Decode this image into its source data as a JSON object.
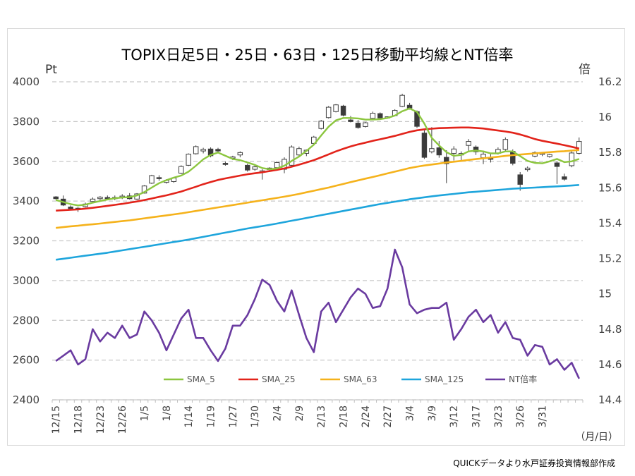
{
  "chart_data": {
    "type": "candlestick-line",
    "title": "TOPIX日足5日・25日・63日・125日移動平均線とNT倍率",
    "y_left_unit": "Pt",
    "y_right_unit": "倍",
    "x_unit": "（月/日）",
    "footnote": "QUICKデータより水戸証券投資情報部作成",
    "ylim_left": [
      2400,
      4000
    ],
    "ylim_right": [
      14.4,
      16.2
    ],
    "y_left_ticks": [
      "4000",
      "3800",
      "3600",
      "3400",
      "3200",
      "3000",
      "2800",
      "2600",
      "2400"
    ],
    "y_right_ticks": [
      "16.2",
      "16",
      "15.8",
      "15.6",
      "15.4",
      "15.2",
      "15",
      "14.8",
      "14.6",
      "14.4"
    ],
    "x_tick_labels": [
      "12/15",
      "12/18",
      "12/23",
      "12/26",
      "1/5",
      "1/8",
      "1/14",
      "1/19",
      "1/27",
      "1/30",
      "2/4",
      "2/9",
      "2/13",
      "2/18",
      "2/24",
      "2/27",
      "3/4",
      "3/9",
      "3/12",
      "3/17",
      "3/23",
      "3/26",
      "3/31"
    ],
    "x_tick_index": [
      0,
      3,
      6,
      9,
      12,
      15,
      18,
      21,
      24,
      27,
      30,
      33,
      36,
      39,
      42,
      45,
      48,
      51,
      54,
      57,
      60,
      63,
      66
    ],
    "grid": "horizontal-dashed",
    "legend_position": "bottom-right",
    "legend": [
      {
        "name": "SMA_5",
        "color": "#8cc63f"
      },
      {
        "name": "SMA_25",
        "color": "#e2231a"
      },
      {
        "name": "SMA_63",
        "color": "#f5b21b"
      },
      {
        "name": "SMA_125",
        "color": "#1ea5dc"
      },
      {
        "name": "NT倍率",
        "color": "#6a3ba0"
      }
    ],
    "candles": [
      [
        3421,
        3425,
        3408,
        3412
      ],
      [
        3410,
        3428,
        3375,
        3380
      ],
      [
        3370,
        3378,
        3355,
        3362
      ],
      [
        3364,
        3370,
        3345,
        3358
      ],
      [
        3372,
        3392,
        3368,
        3385
      ],
      [
        3398,
        3418,
        3394,
        3410
      ],
      [
        3412,
        3425,
        3405,
        3420
      ],
      [
        3418,
        3428,
        3408,
        3412
      ],
      [
        3412,
        3428,
        3404,
        3418
      ],
      [
        3418,
        3435,
        3410,
        3425
      ],
      [
        3426,
        3440,
        3408,
        3412
      ],
      [
        3410,
        3440,
        3406,
        3436
      ],
      [
        3440,
        3480,
        3438,
        3476
      ],
      [
        3490,
        3532,
        3486,
        3528
      ],
      [
        3518,
        3530,
        3502,
        3514
      ],
      [
        3494,
        3510,
        3488,
        3504
      ],
      [
        3498,
        3520,
        3492,
        3516
      ],
      [
        3540,
        3580,
        3536,
        3574
      ],
      [
        3580,
        3640,
        3576,
        3636
      ],
      [
        3638,
        3680,
        3634,
        3674
      ],
      [
        3652,
        3668,
        3640,
        3660
      ],
      [
        3662,
        3670,
        3620,
        3628
      ],
      [
        3660,
        3668,
        3640,
        3652
      ],
      [
        3590,
        3598,
        3578,
        3584
      ],
      [
        3616,
        3628,
        3606,
        3622
      ],
      [
        3632,
        3650,
        3620,
        3644
      ],
      [
        3580,
        3588,
        3548,
        3556
      ],
      [
        3560,
        3582,
        3552,
        3572
      ],
      [
        3545,
        3560,
        3508,
        3552
      ],
      [
        3558,
        3570,
        3548,
        3566
      ],
      [
        3568,
        3600,
        3560,
        3594
      ],
      [
        3560,
        3620,
        3540,
        3610
      ],
      [
        3580,
        3680,
        3575,
        3672
      ],
      [
        3632,
        3674,
        3620,
        3664
      ],
      [
        3640,
        3660,
        3626,
        3656
      ],
      [
        3690,
        3728,
        3680,
        3722
      ],
      [
        3765,
        3808,
        3760,
        3802
      ],
      [
        3820,
        3878,
        3815,
        3872
      ],
      [
        3850,
        3888,
        3846,
        3884
      ],
      [
        3878,
        3884,
        3826,
        3832
      ],
      [
        3808,
        3828,
        3796,
        3800
      ],
      [
        3792,
        3808,
        3764,
        3770
      ],
      [
        3775,
        3798,
        3770,
        3794
      ],
      [
        3816,
        3850,
        3812,
        3842
      ],
      [
        3840,
        3846,
        3812,
        3818
      ],
      [
        3818,
        3826,
        3814,
        3824
      ],
      [
        3830,
        3862,
        3826,
        3856
      ],
      [
        3876,
        3940,
        3872,
        3932
      ],
      [
        3882,
        3894,
        3860,
        3868
      ],
      [
        3850,
        3856,
        3768,
        3776
      ],
      [
        3742,
        3756,
        3612,
        3620
      ],
      [
        3648,
        3772,
        3640,
        3664
      ],
      [
        3668,
        3702,
        3618,
        3632
      ],
      [
        3620,
        3656,
        3490,
        3588
      ],
      [
        3640,
        3676,
        3604,
        3662
      ],
      [
        3632,
        3650,
        3606,
        3640
      ],
      [
        3680,
        3712,
        3654,
        3700
      ],
      [
        3672,
        3680,
        3632,
        3648
      ],
      [
        3618,
        3648,
        3586,
        3636
      ],
      [
        3618,
        3640,
        3594,
        3610
      ],
      [
        3640,
        3670,
        3634,
        3660
      ],
      [
        3660,
        3720,
        3654,
        3710
      ],
      [
        3650,
        3660,
        3580,
        3590
      ],
      [
        3532,
        3546,
        3452,
        3484
      ],
      [
        3558,
        3574,
        3548,
        3566
      ],
      [
        3626,
        3650,
        3620,
        3644
      ],
      [
        3638,
        3646,
        3626,
        3640
      ],
      [
        3624,
        3638,
        3618,
        3634
      ],
      [
        3592,
        3600,
        3486,
        3574
      ],
      [
        3522,
        3538,
        3502,
        3510
      ],
      [
        3578,
        3650,
        3570,
        3642
      ],
      [
        3640,
        3720,
        3634,
        3700
      ]
    ],
    "series": [
      {
        "name": "SMA_5",
        "axis": "left",
        "values": [
          3405,
          3395,
          3385,
          3378,
          3382,
          3392,
          3400,
          3408,
          3414,
          3418,
          3420,
          3428,
          3445,
          3468,
          3490,
          3505,
          3518,
          3528,
          3548,
          3578,
          3610,
          3632,
          3644,
          3628,
          3612,
          3606,
          3594,
          3582,
          3566,
          3560,
          3564,
          3578,
          3602,
          3624,
          3652,
          3684,
          3730,
          3774,
          3806,
          3818,
          3818,
          3816,
          3810,
          3810,
          3812,
          3818,
          3830,
          3852,
          3866,
          3848,
          3790,
          3718,
          3680,
          3646,
          3628,
          3632,
          3650,
          3654,
          3650,
          3640,
          3640,
          3650,
          3650,
          3626,
          3602,
          3592,
          3590,
          3600,
          3612,
          3596,
          3600,
          3612
        ]
      },
      {
        "name": "SMA_25",
        "axis": "left",
        "values": [
          3352,
          3354,
          3356,
          3358,
          3362,
          3366,
          3371,
          3376,
          3381,
          3386,
          3392,
          3398,
          3405,
          3413,
          3421,
          3429,
          3438,
          3448,
          3460,
          3472,
          3485,
          3496,
          3506,
          3514,
          3521,
          3528,
          3535,
          3540,
          3545,
          3551,
          3557,
          3564,
          3573,
          3583,
          3594,
          3606,
          3620,
          3635,
          3650,
          3663,
          3675,
          3685,
          3694,
          3703,
          3711,
          3719,
          3728,
          3738,
          3748,
          3756,
          3761,
          3764,
          3767,
          3768,
          3769,
          3770,
          3770,
          3768,
          3765,
          3760,
          3755,
          3750,
          3744,
          3735,
          3724,
          3712,
          3703,
          3696,
          3689,
          3681,
          3673,
          3664
        ]
      },
      {
        "name": "SMA_63",
        "axis": "left",
        "values": [
          3265,
          3269,
          3273,
          3276,
          3280,
          3283,
          3287,
          3291,
          3295,
          3299,
          3303,
          3308,
          3313,
          3318,
          3323,
          3328,
          3333,
          3338,
          3344,
          3350,
          3356,
          3362,
          3368,
          3374,
          3380,
          3386,
          3392,
          3398,
          3404,
          3410,
          3416,
          3422,
          3429,
          3436,
          3444,
          3452,
          3460,
          3468,
          3477,
          3486,
          3495,
          3504,
          3513,
          3521,
          3530,
          3539,
          3548,
          3557,
          3566,
          3573,
          3579,
          3584,
          3589,
          3594,
          3598,
          3602,
          3607,
          3611,
          3615,
          3619,
          3623,
          3627,
          3631,
          3634,
          3637,
          3640,
          3643,
          3646,
          3649,
          3651,
          3654,
          3657
        ]
      },
      {
        "name": "SMA_125",
        "axis": "left",
        "values": [
          3105,
          3110,
          3115,
          3120,
          3125,
          3130,
          3135,
          3140,
          3146,
          3152,
          3158,
          3164,
          3170,
          3176,
          3182,
          3188,
          3194,
          3200,
          3206,
          3213,
          3220,
          3227,
          3234,
          3241,
          3248,
          3255,
          3262,
          3268,
          3274,
          3280,
          3287,
          3294,
          3301,
          3308,
          3315,
          3322,
          3329,
          3336,
          3343,
          3350,
          3357,
          3364,
          3371,
          3378,
          3385,
          3391,
          3397,
          3403,
          3409,
          3414,
          3419,
          3424,
          3428,
          3432,
          3436,
          3440,
          3444,
          3447,
          3450,
          3453,
          3456,
          3459,
          3462,
          3464,
          3466,
          3468,
          3470,
          3472,
          3474,
          3476,
          3478,
          3481
        ]
      },
      {
        "name": "NT倍率",
        "axis": "right",
        "values": [
          14.62,
          14.65,
          14.68,
          14.6,
          14.63,
          14.8,
          14.73,
          14.78,
          14.75,
          14.82,
          14.75,
          14.77,
          14.9,
          14.85,
          14.78,
          14.68,
          14.77,
          14.86,
          14.91,
          14.75,
          14.75,
          14.68,
          14.62,
          14.69,
          14.82,
          14.82,
          14.88,
          14.97,
          15.08,
          15.05,
          14.96,
          14.9,
          15.02,
          14.88,
          14.75,
          14.67,
          14.9,
          14.95,
          14.84,
          14.91,
          14.98,
          15.03,
          15.0,
          14.92,
          14.93,
          15.03,
          15.25,
          15.15,
          14.94,
          14.89,
          14.91,
          14.92,
          14.92,
          14.95,
          14.74,
          14.8,
          14.87,
          14.91,
          14.84,
          14.88,
          14.78,
          14.84,
          14.75,
          14.74,
          14.65,
          14.71,
          14.7,
          14.6,
          14.63,
          14.57,
          14.61,
          14.52
        ]
      }
    ]
  }
}
